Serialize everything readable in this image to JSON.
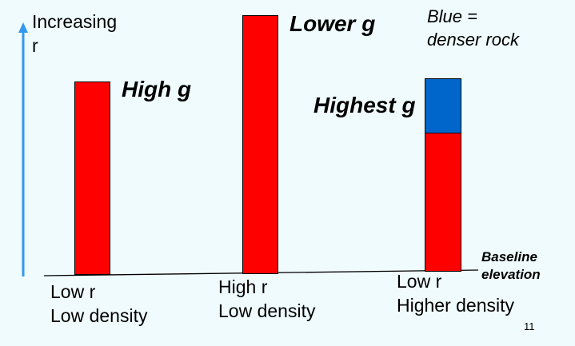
{
  "axis": {
    "label": "Increasing\nr"
  },
  "columns": [
    {
      "g_label": "High g",
      "category": "Low r\nLow density"
    },
    {
      "g_label": "Lower g",
      "category": "High r\nLow density"
    },
    {
      "g_label": "Highest g",
      "category": "Low r\nHigher density"
    }
  ],
  "note": "Blue =\ndenser rock",
  "baseline_label": "Baseline\nelevation",
  "page_number": "11",
  "colors": {
    "bar": "#ff0000",
    "dense_rock": "#0066cc",
    "axis_arrow": "#3399ee",
    "background": "#f0fbfe"
  }
}
